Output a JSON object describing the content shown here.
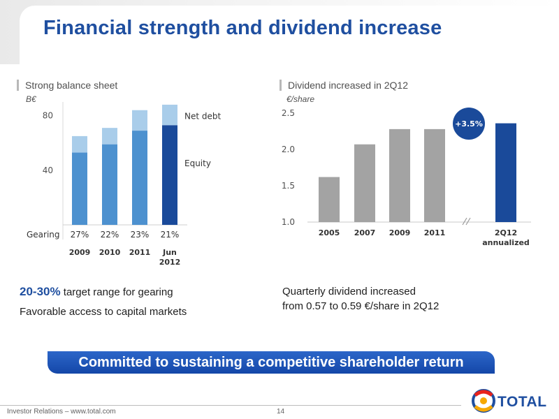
{
  "title": "Financial strength and dividend increase",
  "left_panel": {
    "label": "Strong balance sheet",
    "unit": "B€",
    "text_highlight": "20-30%",
    "text_line1_rest": " target range for gearing",
    "text_line2": "Favorable access to capital markets"
  },
  "right_panel": {
    "label": "Dividend increased in 2Q12",
    "unit": "€/share",
    "badge": "+3.5%",
    "text_line1": "Quarterly dividend increased",
    "text_line2": "from 0.57 to 0.59 €/share in 2Q12"
  },
  "banner": "Committed to sustaining a competitive shareholder return",
  "footer": {
    "left": "Investor Relations – www.total.com",
    "page": "14"
  },
  "logo": {
    "text": "TOTAL"
  },
  "colors": {
    "title": "#1f4fa0",
    "equity": "#4d91cf",
    "equity_latest": "#1a4a9a",
    "net_debt": "#a9cdea",
    "dividend_bar": "#a3a3a3",
    "dividend_latest": "#1a4a9a",
    "badge": "#1a4a9a"
  },
  "chart_data": [
    {
      "type": "bar",
      "stacked": true,
      "categories": [
        "2009",
        "2010",
        "2011",
        "Jun 2012"
      ],
      "yticks": [
        "40",
        "80"
      ],
      "ylim": [
        0,
        90
      ],
      "series": [
        {
          "name": "Equity",
          "values": [
            53,
            59,
            69,
            73
          ]
        },
        {
          "name": "Net debt",
          "values": [
            12,
            12,
            15,
            15
          ]
        }
      ],
      "row_label": "Gearing",
      "row_values": [
        "27%",
        "22%",
        "23%",
        "21%"
      ]
    },
    {
      "type": "bar",
      "categories": [
        "2005",
        "2007",
        "2009",
        "2011",
        "2Q12 annualized"
      ],
      "values": [
        1.62,
        2.07,
        2.28,
        2.28,
        2.36
      ],
      "yticks": [
        "1.0",
        "1.5",
        "2.0",
        "2.5"
      ],
      "ylim": [
        1.0,
        2.5
      ],
      "axis_break_before_last": true
    }
  ]
}
